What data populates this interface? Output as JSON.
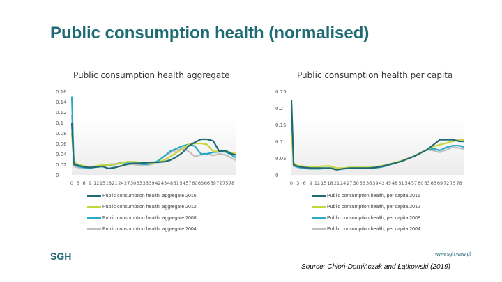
{
  "title": "Public consumption health (normalised)",
  "chart_data": [
    {
      "type": "line",
      "title": "Public consumption health aggregate",
      "ylim": [
        0,
        0.16
      ],
      "yticks": [
        "0",
        "0.02",
        "0.04",
        "0.06",
        "0.08",
        "0.1",
        "0.12",
        "0.14",
        "0.16"
      ],
      "ytick_values": [
        0,
        0.02,
        0.04,
        0.06,
        0.08,
        0.1,
        0.12,
        0.14,
        0.16
      ],
      "grid": false,
      "legend": "bottom",
      "xticks": [
        "0",
        "3",
        "6",
        "9",
        "12",
        "15",
        "18",
        "21",
        "24",
        "27",
        "30",
        "33",
        "36",
        "39",
        "42",
        "45",
        "48",
        "51",
        "54",
        "57",
        "60",
        "63",
        "66",
        "69",
        "72",
        "75",
        "78"
      ],
      "x": [
        0,
        1,
        3,
        6,
        9,
        12,
        15,
        18,
        21,
        24,
        27,
        30,
        33,
        36,
        39,
        42,
        45,
        48,
        51,
        54,
        57,
        60,
        63,
        66,
        69,
        72,
        75,
        78,
        80
      ],
      "series": [
        {
          "name": "Public consumption health, aggregate 2016",
          "color": "#1f6b75",
          "values": [
            0.1,
            0.02,
            0.018,
            0.015,
            0.014,
            0.015,
            0.016,
            0.012,
            0.014,
            0.017,
            0.02,
            0.022,
            0.022,
            0.023,
            0.024,
            0.024,
            0.025,
            0.028,
            0.034,
            0.042,
            0.055,
            0.062,
            0.068,
            0.068,
            0.065,
            0.045,
            0.046,
            0.04,
            0.038
          ]
        },
        {
          "name": "Public consumption health, aggregate 2012",
          "color": "#c5d63f",
          "values": [
            0.08,
            0.025,
            0.02,
            0.017,
            0.015,
            0.017,
            0.019,
            0.019,
            0.02,
            0.022,
            0.025,
            0.025,
            0.024,
            0.023,
            0.023,
            0.024,
            0.028,
            0.035,
            0.042,
            0.05,
            0.058,
            0.06,
            0.06,
            0.058,
            0.045,
            0.045,
            0.046,
            0.042,
            0.04
          ]
        },
        {
          "name": "Public consumption health, aggregate 2008",
          "color": "#2aa9c9",
          "values": [
            0.15,
            0.02,
            0.016,
            0.014,
            0.013,
            0.015,
            0.017,
            0.018,
            0.02,
            0.023,
            0.023,
            0.022,
            0.021,
            0.02,
            0.022,
            0.026,
            0.035,
            0.045,
            0.05,
            0.055,
            0.058,
            0.055,
            0.04,
            0.04,
            0.043,
            0.044,
            0.044,
            0.038,
            0.033
          ]
        },
        {
          "name": "Public consumption health, aggregate 2004",
          "color": "#c0c0c0",
          "values": [
            0.115,
            0.016,
            0.014,
            0.012,
            0.013,
            0.016,
            0.019,
            0.02,
            0.021,
            0.022,
            0.021,
            0.02,
            0.018,
            0.018,
            0.02,
            0.027,
            0.035,
            0.042,
            0.047,
            0.05,
            0.045,
            0.035,
            0.038,
            0.04,
            0.037,
            0.04,
            0.038,
            0.032,
            0.028
          ]
        }
      ]
    },
    {
      "type": "line",
      "title": "Public consumption health per capita",
      "ylim": [
        0,
        0.25
      ],
      "yticks": [
        "0",
        "0.05",
        "0.1",
        "0.15",
        "0.2",
        "0.25"
      ],
      "ytick_values": [
        0,
        0.05,
        0.1,
        0.15,
        0.2,
        0.25
      ],
      "grid": false,
      "legend": "bottom",
      "xticks": [
        "0",
        "3",
        "6",
        "9",
        "12",
        "15",
        "18",
        "21",
        "24",
        "27",
        "30",
        "33",
        "36",
        "39",
        "42",
        "45",
        "48",
        "51",
        "54",
        "57",
        "60",
        "63",
        "66",
        "69",
        "72",
        "75",
        "78"
      ],
      "x": [
        0,
        1,
        3,
        6,
        9,
        12,
        15,
        18,
        21,
        24,
        27,
        30,
        33,
        36,
        39,
        42,
        45,
        48,
        51,
        54,
        57,
        60,
        63,
        66,
        69,
        72,
        75,
        78,
        80
      ],
      "series": [
        {
          "name": "Public consumption health, per capita 2016",
          "color": "#1f6b75",
          "values": [
            0.225,
            0.03,
            0.025,
            0.022,
            0.02,
            0.02,
            0.02,
            0.02,
            0.015,
            0.018,
            0.02,
            0.02,
            0.02,
            0.02,
            0.022,
            0.025,
            0.03,
            0.035,
            0.04,
            0.048,
            0.055,
            0.065,
            0.075,
            0.09,
            0.105,
            0.105,
            0.105,
            0.1,
            0.1
          ]
        },
        {
          "name": "Public consumption health, per capita 2012",
          "color": "#c5d63f",
          "values": [
            0.12,
            0.035,
            0.027,
            0.025,
            0.024,
            0.024,
            0.026,
            0.026,
            0.02,
            0.02,
            0.022,
            0.022,
            0.022,
            0.022,
            0.024,
            0.027,
            0.031,
            0.036,
            0.042,
            0.049,
            0.056,
            0.066,
            0.075,
            0.085,
            0.09,
            0.095,
            0.1,
            0.105,
            0.105
          ]
        },
        {
          "name": "Public consumption health, per capita 2008",
          "color": "#2aa9c9",
          "values": [
            0.2,
            0.028,
            0.023,
            0.02,
            0.018,
            0.018,
            0.019,
            0.02,
            0.018,
            0.019,
            0.02,
            0.02,
            0.019,
            0.019,
            0.021,
            0.024,
            0.029,
            0.035,
            0.041,
            0.048,
            0.056,
            0.066,
            0.075,
            0.078,
            0.073,
            0.082,
            0.087,
            0.087,
            0.083
          ]
        },
        {
          "name": "Public consumption health, per capita 2004",
          "color": "#c0c0c0",
          "values": [
            0.175,
            0.026,
            0.022,
            0.019,
            0.018,
            0.018,
            0.019,
            0.019,
            0.018,
            0.019,
            0.02,
            0.02,
            0.019,
            0.019,
            0.02,
            0.023,
            0.028,
            0.034,
            0.041,
            0.048,
            0.056,
            0.066,
            0.075,
            0.072,
            0.067,
            0.075,
            0.082,
            0.08,
            0.076
          ]
        }
      ]
    }
  ],
  "footer": {
    "logo": "SGH",
    "url": "www.sgh.waw.pl",
    "source": "Source: Chłoń-Domińczak and Łątkowski (2019)"
  }
}
